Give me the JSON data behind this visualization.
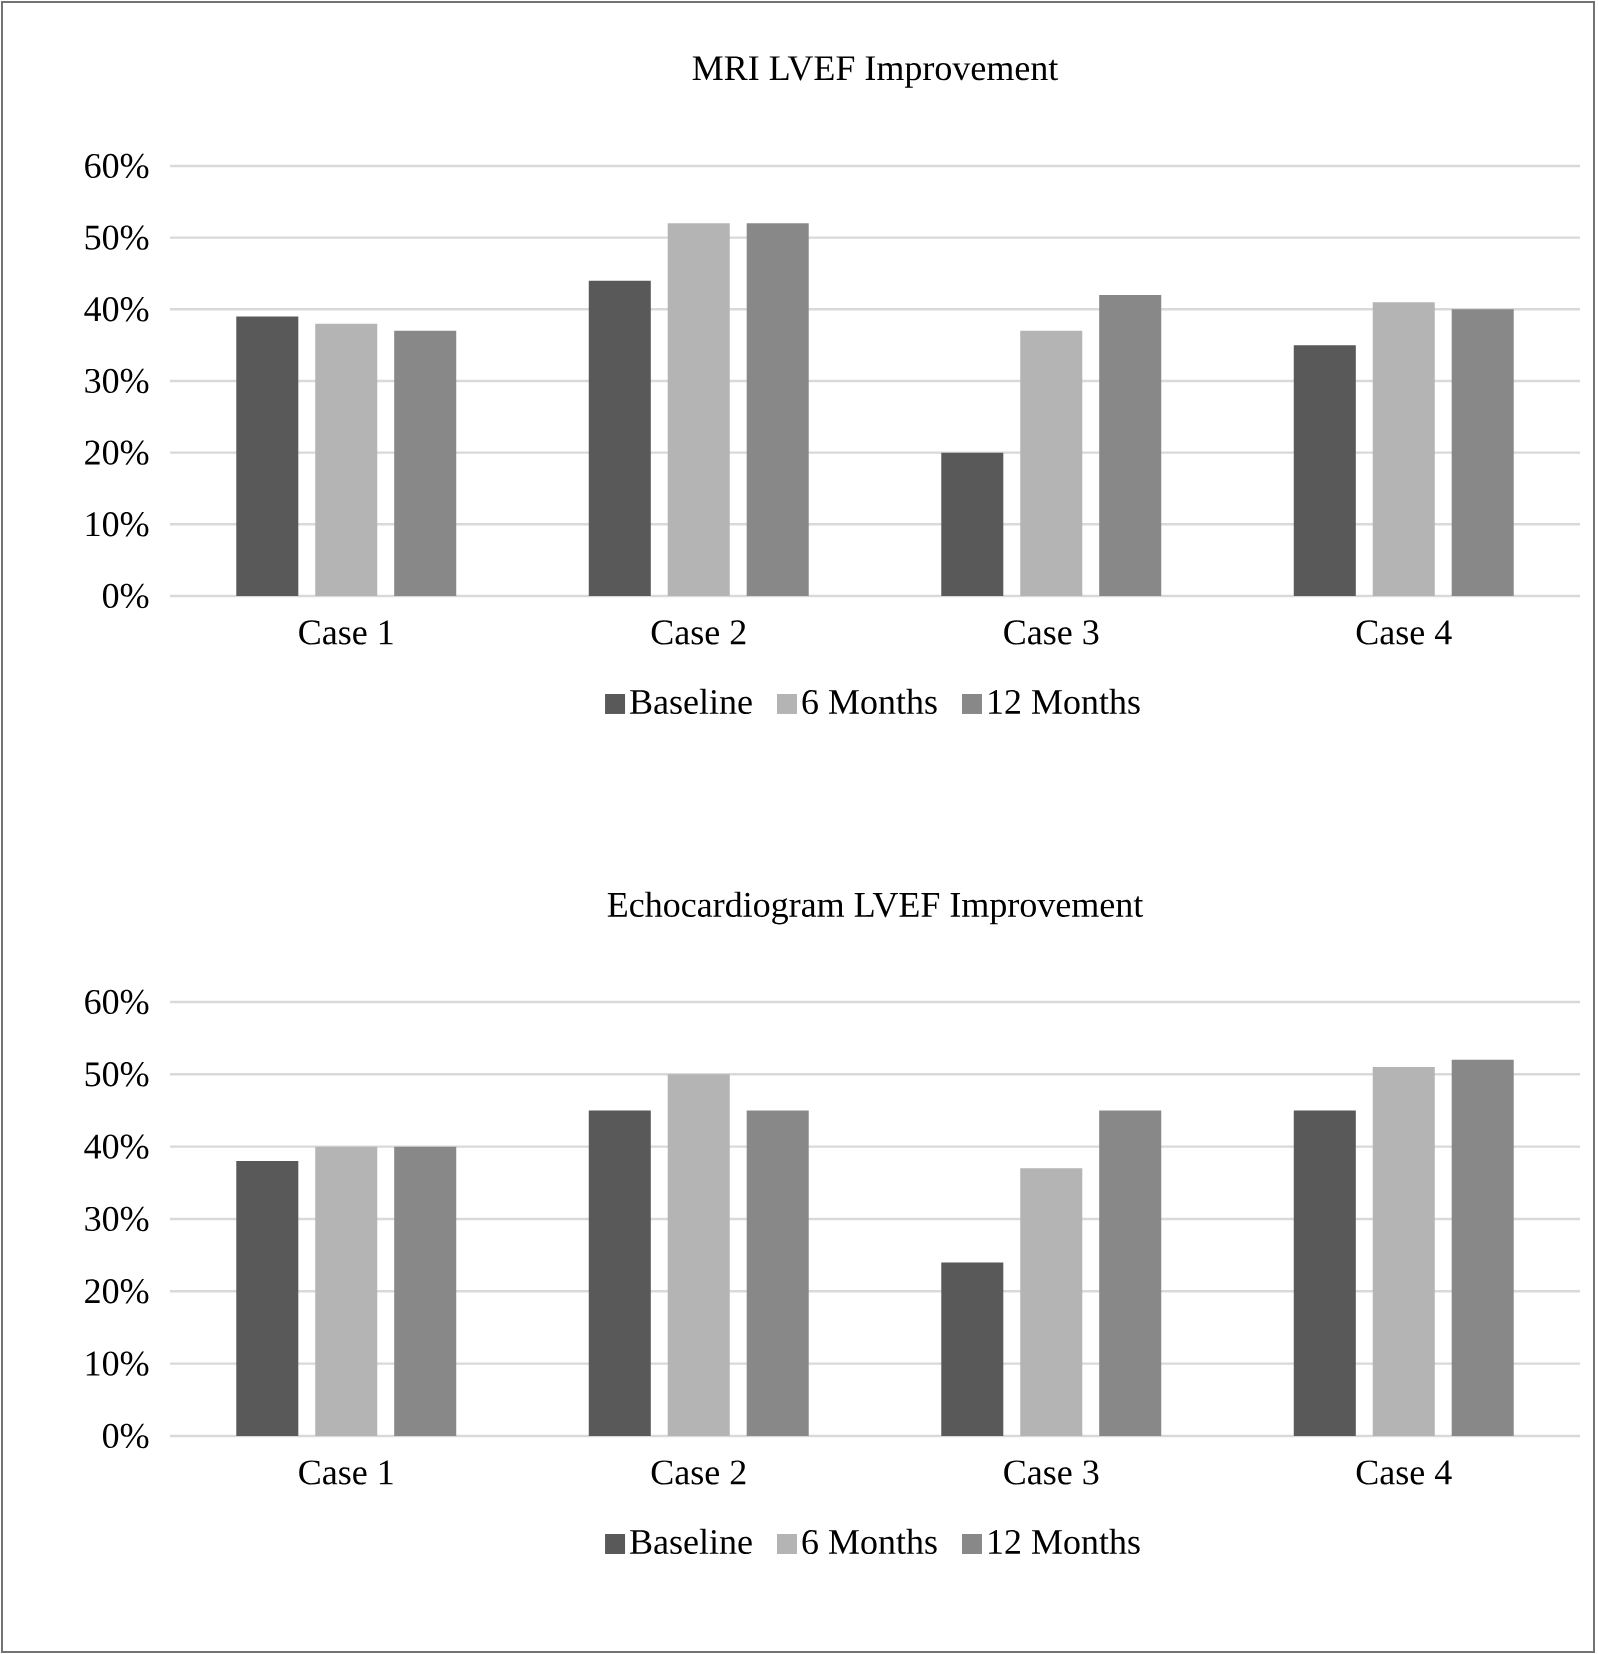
{
  "chart_data": [
    {
      "type": "bar",
      "title": "MRI LVEF Improvement",
      "categories": [
        "Case 1",
        "Case 2",
        "Case 3",
        "Case 4"
      ],
      "series": [
        {
          "name": "Baseline",
          "color": "#595959",
          "values": [
            39,
            44,
            20,
            35
          ]
        },
        {
          "name": "6 Months",
          "color": "#b4b4b4",
          "values": [
            38,
            52,
            37,
            41
          ]
        },
        {
          "name": "12 Months",
          "color": "#888888",
          "values": [
            37,
            52,
            42,
            40
          ]
        }
      ],
      "ylim": [
        0,
        60
      ],
      "yticks": [
        {
          "value": 0,
          "label": "0%"
        },
        {
          "value": 10,
          "label": "10%"
        },
        {
          "value": 20,
          "label": "20%"
        },
        {
          "value": 30,
          "label": "30%"
        },
        {
          "value": 40,
          "label": "40%"
        },
        {
          "value": 50,
          "label": "50%"
        },
        {
          "value": 60,
          "label": "60%"
        }
      ],
      "grid": "y",
      "legend": "bottom"
    },
    {
      "type": "bar",
      "title": "Echocardiogram LVEF Improvement",
      "categories": [
        "Case 1",
        "Case 2",
        "Case 3",
        "Case 4"
      ],
      "series": [
        {
          "name": "Baseline",
          "color": "#595959",
          "values": [
            38,
            45,
            24,
            45
          ]
        },
        {
          "name": "6 Months",
          "color": "#b4b4b4",
          "values": [
            40,
            50,
            37,
            51
          ]
        },
        {
          "name": "12 Months",
          "color": "#888888",
          "values": [
            40,
            45,
            45,
            52
          ]
        }
      ],
      "ylim": [
        0,
        60
      ],
      "yticks": [
        {
          "value": 0,
          "label": "0%"
        },
        {
          "value": 10,
          "label": "10%"
        },
        {
          "value": 20,
          "label": "20%"
        },
        {
          "value": 30,
          "label": "30%"
        },
        {
          "value": 40,
          "label": "40%"
        },
        {
          "value": 50,
          "label": "50%"
        },
        {
          "value": 60,
          "label": "60%"
        }
      ],
      "grid": "y",
      "legend": "bottom"
    }
  ]
}
